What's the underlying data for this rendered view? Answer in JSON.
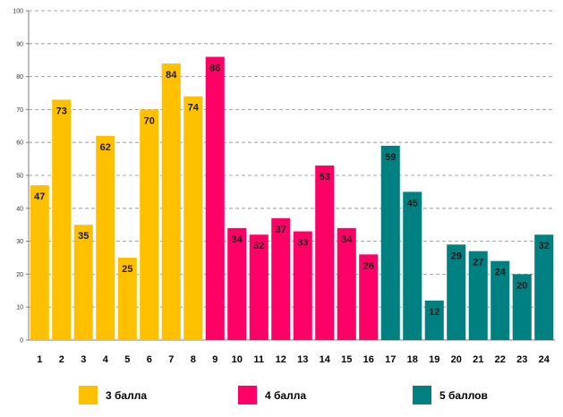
{
  "chart_data": {
    "type": "bar",
    "title": "",
    "xlabel": "",
    "ylabel": "",
    "ylim": [
      0,
      100
    ],
    "yticks": [
      0,
      10,
      20,
      30,
      40,
      50,
      60,
      70,
      80,
      90,
      100
    ],
    "grid": true,
    "legend_position": "bottom",
    "categories": [
      "1",
      "2",
      "3",
      "4",
      "5",
      "6",
      "7",
      "8",
      "9",
      "10",
      "11",
      "12",
      "13",
      "14",
      "15",
      "16",
      "17",
      "18",
      "19",
      "20",
      "21",
      "22",
      "23",
      "24"
    ],
    "values": [
      47,
      73,
      35,
      62,
      25,
      70,
      84,
      74,
      86,
      34,
      32,
      37,
      33,
      53,
      34,
      26,
      59,
      45,
      12,
      29,
      27,
      24,
      20,
      32
    ],
    "group_of_category": [
      0,
      0,
      0,
      0,
      0,
      0,
      0,
      0,
      1,
      1,
      1,
      1,
      1,
      1,
      1,
      1,
      2,
      2,
      2,
      2,
      2,
      2,
      2,
      2
    ],
    "groups": [
      {
        "name": "3 балла",
        "color": "#FFC000"
      },
      {
        "name": "4 балла",
        "color": "#FF0066"
      },
      {
        "name": "5 баллов",
        "color": "#008080"
      }
    ]
  }
}
